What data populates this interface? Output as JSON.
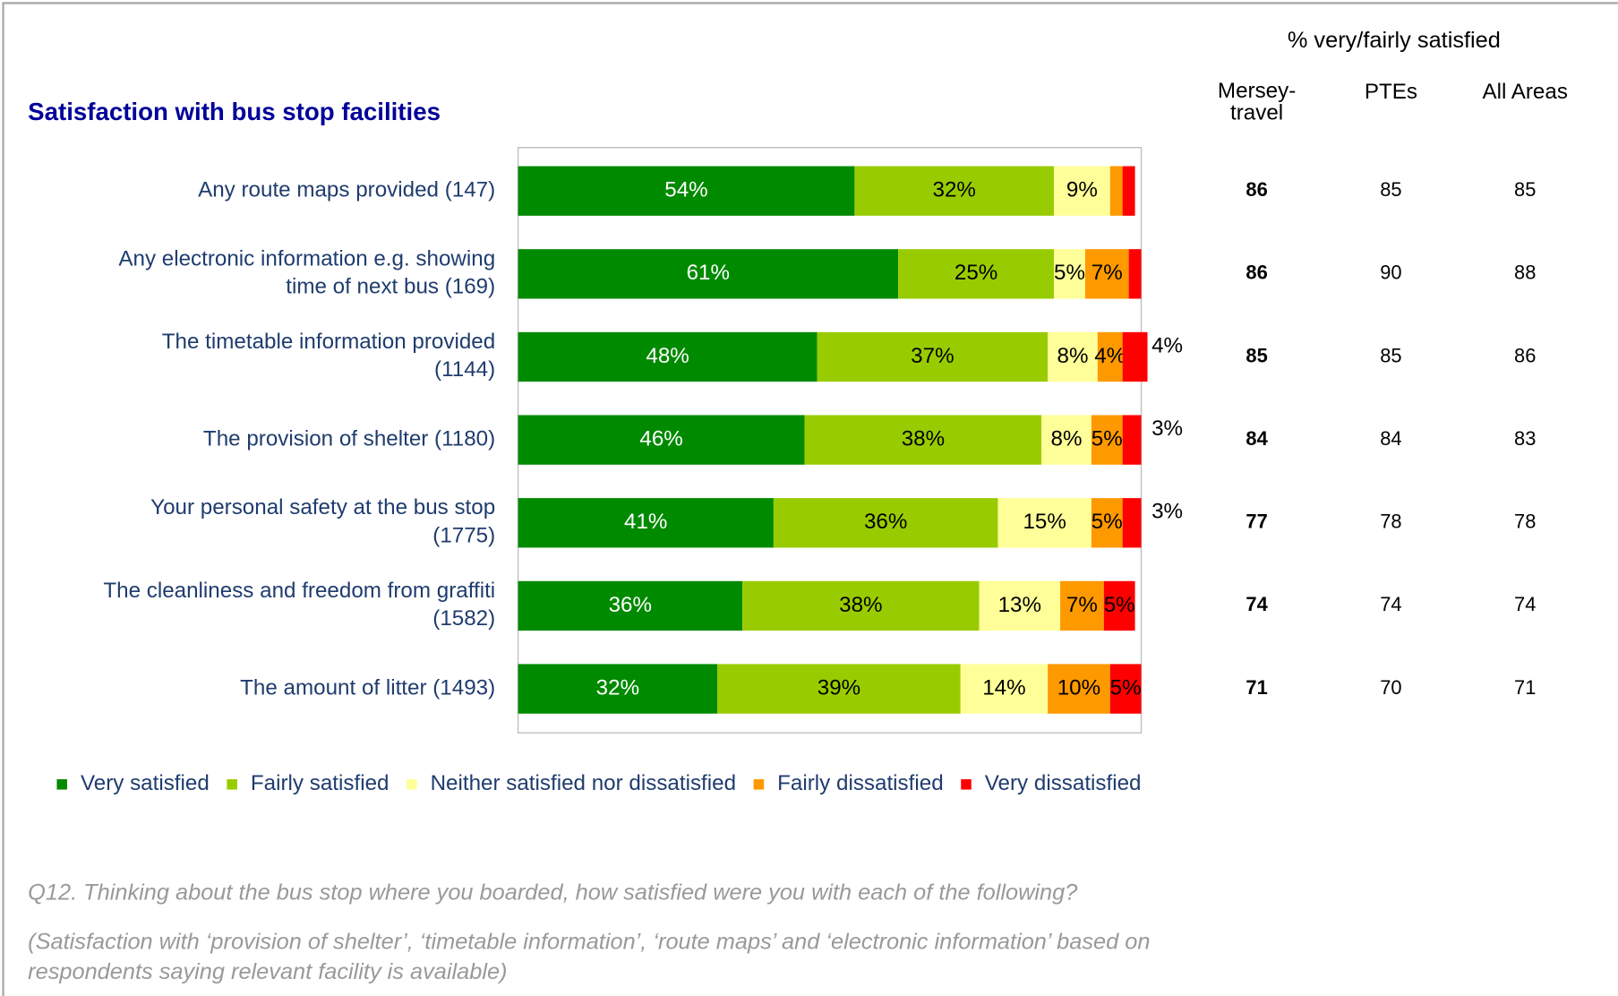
{
  "chart_data": {
    "type": "stacked-bar-horizontal",
    "title": "Satisfaction with bus stop facilities",
    "categories": [
      "Any route maps provided (147)",
      "Any electronic information e.g. showing\ntime of next bus (169)",
      "The timetable information provided\n(1144)",
      "The provision of shelter (1180)",
      "Your personal safety at the bus stop\n(1775)",
      "The cleanliness and freedom from graffiti\n(1582)",
      "The amount of litter (1493)"
    ],
    "xlim": [
      0,
      100
    ],
    "series": [
      {
        "name": "Very satisfied",
        "color": "#008a00",
        "values": [
          54,
          61,
          48,
          46,
          41,
          36,
          32
        ],
        "value_labels": [
          "54%",
          "61%",
          "48%",
          "46%",
          "41%",
          "36%",
          "32%"
        ]
      },
      {
        "name": "Fairly satisfied",
        "color": "#99cc00",
        "values": [
          32,
          25,
          37,
          38,
          36,
          38,
          39
        ],
        "value_labels": [
          "32%",
          "25%",
          "37%",
          "38%",
          "36%",
          "38%",
          "39%"
        ]
      },
      {
        "name": "Neither satisfied nor dissatisfied",
        "color": "#ffff99",
        "values": [
          9,
          5,
          8,
          8,
          15,
          13,
          14
        ],
        "value_labels": [
          "9%",
          "5%",
          "8%",
          "8%",
          "15%",
          "13%",
          "14%"
        ]
      },
      {
        "name": "Fairly dissatisfied",
        "color": "#ff9900",
        "values": [
          2,
          7,
          4,
          5,
          5,
          7,
          10
        ],
        "value_labels": [
          null,
          "7%",
          "4%",
          "5%",
          "5%",
          "7%",
          "10%"
        ]
      },
      {
        "name": "Very dissatisfied",
        "color": "#ff0000",
        "values": [
          2,
          2,
          4,
          3,
          3,
          5,
          5
        ],
        "value_labels": [
          null,
          null,
          "4%",
          "3%",
          "3%",
          "5%",
          "5%"
        ]
      }
    ],
    "table": {
      "title": "% very/fairly satisfied",
      "columns": [
        "Mersey-\ntravel",
        "PTEs",
        "All Areas"
      ],
      "rows": [
        [
          86,
          85,
          85
        ],
        [
          86,
          90,
          88
        ],
        [
          85,
          85,
          86
        ],
        [
          84,
          84,
          83
        ],
        [
          77,
          78,
          78
        ],
        [
          74,
          74,
          74
        ],
        [
          71,
          70,
          71
        ]
      ]
    },
    "notes": [
      "Q12.  Thinking about the bus stop where you boarded, how satisfied were you with each of the following?",
      "(Satisfaction with ‘provision of shelter’, ‘timetable information’, ‘route maps’ and ‘electronic information’ based on\nrespondents saying relevant facility is available)"
    ]
  }
}
